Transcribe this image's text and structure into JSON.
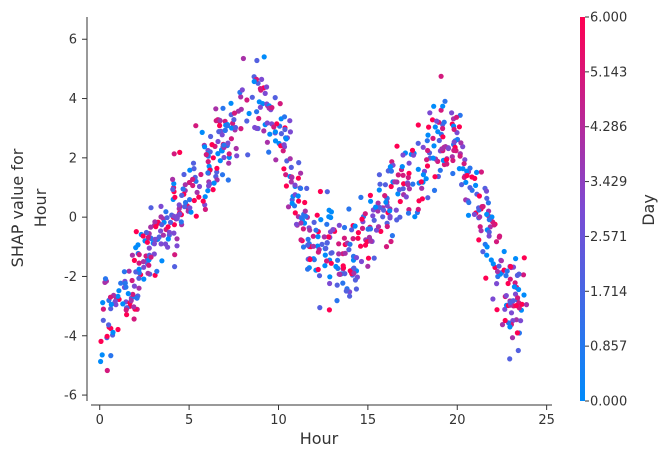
{
  "chart_data": {
    "type": "scatter",
    "title": "",
    "xlabel": "Hour",
    "ylabel_lines": [
      "SHAP value for",
      "Hour"
    ],
    "xlim": [
      -0.6,
      25.3
    ],
    "ylim": [
      -6.2,
      6.75
    ],
    "x_ticks": [
      0,
      5,
      10,
      15,
      20,
      25
    ],
    "y_ticks": [
      6,
      4,
      2,
      0,
      -2,
      -4,
      -6
    ],
    "grid": false,
    "colorbar": {
      "label": "Day",
      "min": 0,
      "max": 6,
      "tick_labels": [
        "6.000",
        "5.143",
        "4.286",
        "3.429",
        "2.571",
        "1.714",
        "0.857",
        "0.000"
      ],
      "color_low": "#008bfb",
      "color_mid": "#7c4ad3",
      "color_high": "#ff0052"
    },
    "trend_description": "Hour-dependent SHAP values: rising from about -4 at hour 0 to a peak near 4-6 at hour 8-9, dropping to about -1.5 around hour 13-14, rising again to about 3 near hour 19, then falling to about -3 by hour 23.",
    "trend_x": [
      0,
      1,
      2,
      3,
      4,
      5,
      6,
      7,
      8,
      9,
      10,
      11,
      12,
      13,
      14,
      15,
      16,
      17,
      18,
      19,
      20,
      21,
      22,
      23,
      24
    ],
    "trend_y": [
      -4.0,
      -3.0,
      -2.0,
      -1.0,
      0.0,
      0.8,
      1.6,
      2.6,
      3.8,
      4.2,
      2.8,
      0.5,
      -0.8,
      -1.4,
      -1.5,
      -0.5,
      0.6,
      1.0,
      1.6,
      2.8,
      2.3,
      0.8,
      -1.2,
      -2.8,
      -2.8
    ],
    "noise_sd": 0.75,
    "point_count": 800,
    "day_values": [
      0,
      1,
      2,
      3,
      4,
      5,
      6
    ]
  }
}
